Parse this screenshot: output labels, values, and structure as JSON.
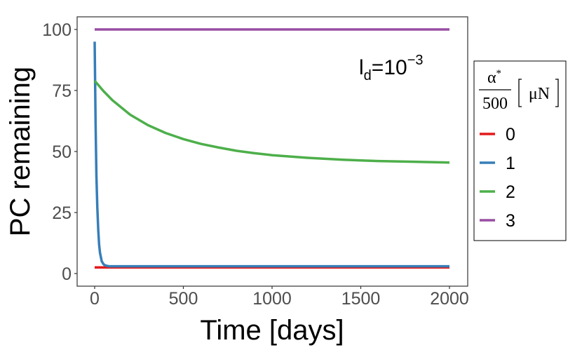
{
  "chart_data": {
    "type": "line",
    "xlabel": "Time [days]",
    "ylabel": "PC remaining",
    "xlim": [
      0,
      2000
    ],
    "ylim": [
      0,
      100
    ],
    "x_ticks": [
      0,
      500,
      1000,
      1500,
      2000
    ],
    "y_ticks": [
      0,
      25,
      50,
      75,
      100
    ],
    "x_tick_labels": [
      "0",
      "500",
      "1000",
      "1500",
      "2000"
    ],
    "y_tick_labels": [
      "0",
      "25",
      "50",
      "75",
      "100"
    ],
    "grid": false,
    "legend_position": "right",
    "legend": {
      "title_numerator": "α",
      "title_sup": "*",
      "title_denominator": "500",
      "title_unit": "μN"
    },
    "annotation": {
      "base": "l",
      "sub": "d",
      "mid": "=10",
      "sup": "−3"
    },
    "series": [
      {
        "name": "0",
        "color": "#e41a1c",
        "x": [
          0,
          2000
        ],
        "y": [
          2.5,
          2.5
        ]
      },
      {
        "name": "1",
        "color": "#377eb8",
        "x": [
          0,
          5,
          10,
          15,
          20,
          25,
          30,
          40,
          50,
          60,
          80,
          100,
          200,
          500,
          1000,
          1500,
          2000
        ],
        "y": [
          95,
          62,
          40,
          27,
          18,
          12,
          8.5,
          5,
          3.8,
          3.3,
          3.0,
          3.0,
          3.0,
          3.0,
          3.0,
          3.0,
          3.0
        ]
      },
      {
        "name": "2",
        "color": "#4daf4a",
        "x": [
          0,
          50,
          100,
          200,
          300,
          400,
          500,
          600,
          700,
          800,
          900,
          1000,
          1200,
          1400,
          1600,
          1800,
          2000
        ],
        "y": [
          79,
          74.7,
          71.0,
          65.1,
          60.8,
          57.6,
          55.1,
          53.1,
          51.6,
          50.3,
          49.3,
          48.5,
          47.4,
          46.6,
          46.1,
          45.8,
          45.5
        ]
      },
      {
        "name": "3",
        "color": "#984ea3",
        "x": [
          0,
          2000
        ],
        "y": [
          100,
          100
        ]
      }
    ]
  }
}
